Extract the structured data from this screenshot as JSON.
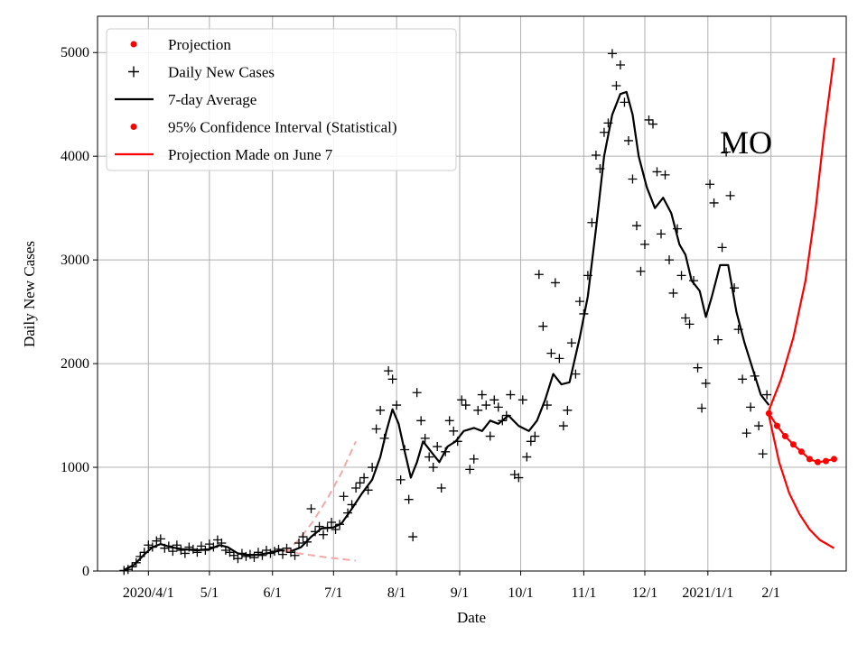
{
  "chart_data": {
    "type": "line",
    "title": "",
    "annotation": "MO",
    "xlabel": "Date",
    "ylabel": "Daily New Cases",
    "xlim": [
      "2020-03-07",
      "2021-03-10"
    ],
    "ylim": [
      0,
      5350
    ],
    "grid": true,
    "legend_position": "top-left",
    "x_ticks": [
      {
        "date": "2020-04-01",
        "label": "2020/4/1"
      },
      {
        "date": "2020-05-01",
        "label": "5/1"
      },
      {
        "date": "2020-06-01",
        "label": "6/1"
      },
      {
        "date": "2020-07-01",
        "label": "7/1"
      },
      {
        "date": "2020-08-01",
        "label": "8/1"
      },
      {
        "date": "2020-09-01",
        "label": "9/1"
      },
      {
        "date": "2020-10-01",
        "label": "10/1"
      },
      {
        "date": "2020-11-01",
        "label": "11/1"
      },
      {
        "date": "2020-12-01",
        "label": "12/1"
      },
      {
        "date": "2021-01-01",
        "label": "2021/1/1"
      },
      {
        "date": "2021-02-01",
        "label": "2/1"
      }
    ],
    "y_ticks": [
      0,
      1000,
      2000,
      3000,
      4000,
      5000
    ],
    "legend": [
      {
        "label": "Projection",
        "style": "dot",
        "color": "#ff0000"
      },
      {
        "label": "Daily New Cases",
        "style": "plus",
        "color": "#000000"
      },
      {
        "label": "7-day Average",
        "style": "line",
        "color": "#000000"
      },
      {
        "label": "95% Confidence Interval (Statistical)",
        "style": "dot",
        "color": "#ff0000"
      },
      {
        "label": "Projection Made on June 7",
        "style": "line",
        "color": "#ff0000"
      }
    ],
    "series": [
      {
        "name": "7-day Average",
        "color": "#000000",
        "points": [
          [
            "2020-03-20",
            10
          ],
          [
            "2020-03-25",
            60
          ],
          [
            "2020-03-30",
            160
          ],
          [
            "2020-04-03",
            230
          ],
          [
            "2020-04-07",
            260
          ],
          [
            "2020-04-12",
            230
          ],
          [
            "2020-04-18",
            210
          ],
          [
            "2020-04-25",
            200
          ],
          [
            "2020-05-01",
            210
          ],
          [
            "2020-05-06",
            250
          ],
          [
            "2020-05-10",
            230
          ],
          [
            "2020-05-15",
            170
          ],
          [
            "2020-05-20",
            150
          ],
          [
            "2020-05-26",
            160
          ],
          [
            "2020-06-01",
            180
          ],
          [
            "2020-06-05",
            200
          ],
          [
            "2020-06-10",
            190
          ],
          [
            "2020-06-15",
            230
          ],
          [
            "2020-06-20",
            330
          ],
          [
            "2020-06-25",
            410
          ],
          [
            "2020-07-01",
            420
          ],
          [
            "2020-07-05",
            460
          ],
          [
            "2020-07-10",
            600
          ],
          [
            "2020-07-15",
            750
          ],
          [
            "2020-07-20",
            880
          ],
          [
            "2020-07-24",
            1100
          ],
          [
            "2020-07-27",
            1350
          ],
          [
            "2020-07-30",
            1560
          ],
          [
            "2020-08-02",
            1420
          ],
          [
            "2020-08-05",
            1150
          ],
          [
            "2020-08-08",
            900
          ],
          [
            "2020-08-11",
            1050
          ],
          [
            "2020-08-14",
            1250
          ],
          [
            "2020-08-18",
            1150
          ],
          [
            "2020-08-22",
            1050
          ],
          [
            "2020-08-26",
            1200
          ],
          [
            "2020-08-30",
            1250
          ],
          [
            "2020-09-03",
            1350
          ],
          [
            "2020-09-08",
            1380
          ],
          [
            "2020-09-12",
            1350
          ],
          [
            "2020-09-16",
            1450
          ],
          [
            "2020-09-20",
            1420
          ],
          [
            "2020-09-25",
            1500
          ],
          [
            "2020-09-30",
            1400
          ],
          [
            "2020-10-05",
            1350
          ],
          [
            "2020-10-09",
            1450
          ],
          [
            "2020-10-13",
            1650
          ],
          [
            "2020-10-17",
            1900
          ],
          [
            "2020-10-21",
            1800
          ],
          [
            "2020-10-25",
            1820
          ],
          [
            "2020-10-30",
            2250
          ],
          [
            "2020-11-03",
            2650
          ],
          [
            "2020-11-07",
            3300
          ],
          [
            "2020-11-11",
            4000
          ],
          [
            "2020-11-15",
            4400
          ],
          [
            "2020-11-19",
            4600
          ],
          [
            "2020-11-22",
            4620
          ],
          [
            "2020-11-25",
            4400
          ],
          [
            "2020-11-28",
            4000
          ],
          [
            "2020-12-02",
            3700
          ],
          [
            "2020-12-06",
            3500
          ],
          [
            "2020-12-10",
            3600
          ],
          [
            "2020-12-14",
            3450
          ],
          [
            "2020-12-18",
            3150
          ],
          [
            "2020-12-21",
            3050
          ],
          [
            "2020-12-24",
            2800
          ],
          [
            "2020-12-28",
            2700
          ],
          [
            "2020-12-31",
            2450
          ],
          [
            "2021-01-03",
            2650
          ],
          [
            "2021-01-07",
            2950
          ],
          [
            "2021-01-11",
            2950
          ],
          [
            "2021-01-15",
            2500
          ],
          [
            "2021-01-19",
            2200
          ],
          [
            "2021-01-23",
            1950
          ],
          [
            "2021-01-27",
            1700
          ],
          [
            "2021-01-31",
            1600
          ]
        ]
      },
      {
        "name": "Projection (central)",
        "color": "#ff0000",
        "points": [
          [
            "2021-01-31",
            1520
          ],
          [
            "2021-02-04",
            1400
          ],
          [
            "2021-02-08",
            1300
          ],
          [
            "2021-02-12",
            1220
          ],
          [
            "2021-02-16",
            1150
          ],
          [
            "2021-02-20",
            1080
          ],
          [
            "2021-02-24",
            1050
          ],
          [
            "2021-02-28",
            1060
          ],
          [
            "2021-03-04",
            1080
          ]
        ]
      },
      {
        "name": "95% CI upper",
        "color": "#ff0000",
        "points": [
          [
            "2021-01-31",
            1550
          ],
          [
            "2021-02-06",
            1850
          ],
          [
            "2021-02-12",
            2250
          ],
          [
            "2021-02-18",
            2800
          ],
          [
            "2021-02-23",
            3500
          ],
          [
            "2021-02-27",
            4200
          ],
          [
            "2021-03-04",
            4950
          ]
        ]
      },
      {
        "name": "95% CI lower",
        "color": "#ff0000",
        "points": [
          [
            "2021-01-31",
            1500
          ],
          [
            "2021-02-05",
            1050
          ],
          [
            "2021-02-10",
            750
          ],
          [
            "2021-02-15",
            550
          ],
          [
            "2021-02-20",
            400
          ],
          [
            "2021-02-25",
            300
          ],
          [
            "2021-03-04",
            220
          ]
        ]
      },
      {
        "name": "Projection Made on June 7 (upper, dashed)",
        "color": "#f4a8a8",
        "points": [
          [
            "2020-06-07",
            180
          ],
          [
            "2020-06-14",
            300
          ],
          [
            "2020-06-21",
            480
          ],
          [
            "2020-06-28",
            700
          ],
          [
            "2020-07-05",
            950
          ],
          [
            "2020-07-12",
            1250
          ]
        ]
      },
      {
        "name": "Projection Made on June 7 (lower, dashed)",
        "color": "#f4a8a8",
        "points": [
          [
            "2020-06-07",
            200
          ],
          [
            "2020-06-14",
            170
          ],
          [
            "2020-06-21",
            150
          ],
          [
            "2020-06-28",
            130
          ],
          [
            "2020-07-05",
            115
          ],
          [
            "2020-07-12",
            100
          ]
        ]
      }
    ],
    "daily_new_cases": [
      [
        "2020-03-20",
        5
      ],
      [
        "2020-03-22",
        15
      ],
      [
        "2020-03-24",
        40
      ],
      [
        "2020-03-26",
        80
      ],
      [
        "2020-03-28",
        140
      ],
      [
        "2020-03-30",
        180
      ],
      [
        "2020-04-01",
        250
      ],
      [
        "2020-04-03",
        230
      ],
      [
        "2020-04-05",
        290
      ],
      [
        "2020-04-07",
        310
      ],
      [
        "2020-04-09",
        220
      ],
      [
        "2020-04-11",
        240
      ],
      [
        "2020-04-13",
        190
      ],
      [
        "2020-04-15",
        250
      ],
      [
        "2020-04-17",
        200
      ],
      [
        "2020-04-19",
        170
      ],
      [
        "2020-04-21",
        230
      ],
      [
        "2020-04-23",
        210
      ],
      [
        "2020-04-25",
        180
      ],
      [
        "2020-04-27",
        240
      ],
      [
        "2020-04-29",
        200
      ],
      [
        "2020-05-01",
        260
      ],
      [
        "2020-05-03",
        230
      ],
      [
        "2020-05-05",
        300
      ],
      [
        "2020-05-07",
        270
      ],
      [
        "2020-05-09",
        200
      ],
      [
        "2020-05-11",
        180
      ],
      [
        "2020-05-13",
        150
      ],
      [
        "2020-05-15",
        120
      ],
      [
        "2020-05-17",
        170
      ],
      [
        "2020-05-19",
        140
      ],
      [
        "2020-05-21",
        160
      ],
      [
        "2020-05-23",
        130
      ],
      [
        "2020-05-25",
        180
      ],
      [
        "2020-05-27",
        150
      ],
      [
        "2020-05-29",
        200
      ],
      [
        "2020-05-31",
        170
      ],
      [
        "2020-06-02",
        190
      ],
      [
        "2020-06-04",
        210
      ],
      [
        "2020-06-06",
        160
      ],
      [
        "2020-06-08",
        220
      ],
      [
        "2020-06-10",
        180
      ],
      [
        "2020-06-12",
        150
      ],
      [
        "2020-06-14",
        270
      ],
      [
        "2020-06-16",
        330
      ],
      [
        "2020-06-18",
        280
      ],
      [
        "2020-06-20",
        600
      ],
      [
        "2020-06-22",
        380
      ],
      [
        "2020-06-24",
        430
      ],
      [
        "2020-06-26",
        350
      ],
      [
        "2020-06-28",
        420
      ],
      [
        "2020-06-30",
        470
      ],
      [
        "2020-07-02",
        400
      ],
      [
        "2020-07-04",
        450
      ],
      [
        "2020-07-06",
        720
      ],
      [
        "2020-07-08",
        560
      ],
      [
        "2020-07-10",
        640
      ],
      [
        "2020-07-12",
        800
      ],
      [
        "2020-07-14",
        850
      ],
      [
        "2020-07-16",
        900
      ],
      [
        "2020-07-18",
        780
      ],
      [
        "2020-07-20",
        1000
      ],
      [
        "2020-07-22",
        1370
      ],
      [
        "2020-07-24",
        1550
      ],
      [
        "2020-07-26",
        1280
      ],
      [
        "2020-07-28",
        1930
      ],
      [
        "2020-07-30",
        1850
      ],
      [
        "2020-08-01",
        1600
      ],
      [
        "2020-08-03",
        880
      ],
      [
        "2020-08-05",
        1170
      ],
      [
        "2020-08-07",
        690
      ],
      [
        "2020-08-09",
        330
      ],
      [
        "2020-08-11",
        1720
      ],
      [
        "2020-08-13",
        1450
      ],
      [
        "2020-08-15",
        1280
      ],
      [
        "2020-08-17",
        1100
      ],
      [
        "2020-08-19",
        1000
      ],
      [
        "2020-08-21",
        1200
      ],
      [
        "2020-08-23",
        800
      ],
      [
        "2020-08-25",
        1150
      ],
      [
        "2020-08-27",
        1450
      ],
      [
        "2020-08-29",
        1350
      ],
      [
        "2020-08-31",
        1250
      ],
      [
        "2020-09-02",
        1650
      ],
      [
        "2020-09-04",
        1600
      ],
      [
        "2020-09-06",
        980
      ],
      [
        "2020-09-08",
        1080
      ],
      [
        "2020-09-10",
        1550
      ],
      [
        "2020-09-12",
        1700
      ],
      [
        "2020-09-14",
        1600
      ],
      [
        "2020-09-16",
        1300
      ],
      [
        "2020-09-18",
        1650
      ],
      [
        "2020-09-20",
        1580
      ],
      [
        "2020-09-22",
        1450
      ],
      [
        "2020-09-24",
        1500
      ],
      [
        "2020-09-26",
        1700
      ],
      [
        "2020-09-28",
        930
      ],
      [
        "2020-09-30",
        900
      ],
      [
        "2020-10-02",
        1650
      ],
      [
        "2020-10-04",
        1100
      ],
      [
        "2020-10-06",
        1250
      ],
      [
        "2020-10-08",
        1300
      ],
      [
        "2020-10-10",
        2860
      ],
      [
        "2020-10-12",
        2360
      ],
      [
        "2020-10-14",
        1600
      ],
      [
        "2020-10-16",
        2100
      ],
      [
        "2020-10-18",
        2780
      ],
      [
        "2020-10-20",
        2050
      ],
      [
        "2020-10-22",
        1400
      ],
      [
        "2020-10-24",
        1550
      ],
      [
        "2020-10-26",
        2200
      ],
      [
        "2020-10-28",
        1900
      ],
      [
        "2020-10-30",
        2600
      ],
      [
        "2020-11-01",
        2480
      ],
      [
        "2020-11-03",
        2850
      ],
      [
        "2020-11-05",
        3360
      ],
      [
        "2020-11-07",
        4010
      ],
      [
        "2020-11-09",
        3880
      ],
      [
        "2020-11-11",
        4230
      ],
      [
        "2020-11-13",
        4320
      ],
      [
        "2020-11-15",
        4990
      ],
      [
        "2020-11-17",
        4680
      ],
      [
        "2020-11-19",
        4880
      ],
      [
        "2020-11-21",
        4520
      ],
      [
        "2020-11-23",
        4150
      ],
      [
        "2020-11-25",
        3780
      ],
      [
        "2020-11-27",
        3330
      ],
      [
        "2020-11-29",
        2890
      ],
      [
        "2020-12-01",
        3150
      ],
      [
        "2020-12-03",
        4350
      ],
      [
        "2020-12-05",
        4310
      ],
      [
        "2020-12-07",
        3850
      ],
      [
        "2020-12-09",
        3250
      ],
      [
        "2020-12-11",
        3820
      ],
      [
        "2020-12-13",
        3000
      ],
      [
        "2020-12-15",
        2680
      ],
      [
        "2020-12-17",
        3300
      ],
      [
        "2020-12-19",
        2850
      ],
      [
        "2020-12-21",
        2440
      ],
      [
        "2020-12-23",
        2380
      ],
      [
        "2020-12-25",
        2800
      ],
      [
        "2020-12-27",
        1960
      ],
      [
        "2020-12-29",
        1570
      ],
      [
        "2020-12-31",
        1810
      ],
      [
        "2021-01-02",
        3730
      ],
      [
        "2021-01-04",
        3550
      ],
      [
        "2021-01-06",
        2230
      ],
      [
        "2021-01-08",
        3120
      ],
      [
        "2021-01-10",
        4040
      ],
      [
        "2021-01-12",
        3620
      ],
      [
        "2021-01-14",
        2730
      ],
      [
        "2021-01-16",
        2330
      ],
      [
        "2021-01-18",
        1850
      ],
      [
        "2021-01-20",
        1330
      ],
      [
        "2021-01-22",
        1580
      ],
      [
        "2021-01-24",
        1880
      ],
      [
        "2021-01-26",
        1400
      ],
      [
        "2021-01-28",
        1130
      ],
      [
        "2021-01-30",
        1700
      ]
    ]
  }
}
